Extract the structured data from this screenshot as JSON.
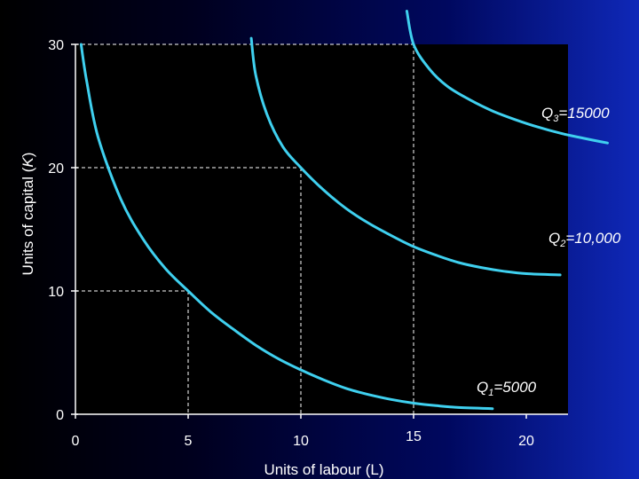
{
  "chart_data": {
    "type": "line",
    "xlabel": "Units of labour (L)",
    "ylabel_prefix": "Units of capital (",
    "ylabel_var": "K",
    "ylabel_suffix": ")",
    "xlim": [
      0,
      21
    ],
    "ylim": [
      0,
      30
    ],
    "x_ticks": [
      0,
      5,
      10,
      15,
      20
    ],
    "y_ticks": [
      0,
      10,
      20,
      30
    ],
    "series": [
      {
        "name": "Q1=5000",
        "label_parts": [
          "Q",
          "1",
          "=5000"
        ],
        "color": "#3fd0ef",
        "points": [
          [
            0.25,
            30
          ],
          [
            0.5,
            27
          ],
          [
            1,
            22.5
          ],
          [
            2,
            17.5
          ],
          [
            3,
            14.2
          ],
          [
            4,
            11.8
          ],
          [
            5,
            10
          ],
          [
            6,
            8.3
          ],
          [
            7,
            6.9
          ],
          [
            8,
            5.6
          ],
          [
            9,
            4.5
          ],
          [
            10,
            3.6
          ],
          [
            11,
            2.8
          ],
          [
            12,
            2.1
          ],
          [
            13,
            1.6
          ],
          [
            14,
            1.2
          ],
          [
            15,
            0.9
          ],
          [
            16,
            0.7
          ],
          [
            17,
            0.55
          ],
          [
            18.5,
            0.45
          ]
        ]
      },
      {
        "name": "Q2=10,000",
        "label_parts": [
          "Q",
          "2",
          "=10,000"
        ],
        "color": "#3fd0ef",
        "points": [
          [
            7.8,
            30.5
          ],
          [
            8,
            27.5
          ],
          [
            8.5,
            24.3
          ],
          [
            9.2,
            21.7
          ],
          [
            10,
            20
          ],
          [
            11,
            18.2
          ],
          [
            12,
            16.7
          ],
          [
            13,
            15.5
          ],
          [
            14,
            14.5
          ],
          [
            15,
            13.6
          ],
          [
            16,
            12.9
          ],
          [
            17,
            12.3
          ],
          [
            18,
            11.9
          ],
          [
            19,
            11.6
          ],
          [
            20,
            11.4
          ],
          [
            21.5,
            11.3
          ]
        ]
      },
      {
        "name": "Q3=15000",
        "label_parts": [
          "Q",
          "3",
          "=15000"
        ],
        "color": "#3fd0ef",
        "points": [
          [
            14.7,
            32.7
          ],
          [
            15,
            30
          ],
          [
            15.7,
            28
          ],
          [
            16.5,
            26.6
          ],
          [
            17.5,
            25.5
          ],
          [
            18.5,
            24.6
          ],
          [
            19.5,
            23.9
          ],
          [
            20.5,
            23.3
          ],
          [
            21.5,
            22.8
          ],
          [
            22.5,
            22.4
          ],
          [
            23.6,
            22
          ]
        ]
      }
    ],
    "guides": [
      [
        5,
        10
      ],
      [
        10,
        20
      ],
      [
        15,
        30
      ]
    ],
    "plot_background": "#000000",
    "grid": false,
    "legend": "labels-on-curves"
  }
}
